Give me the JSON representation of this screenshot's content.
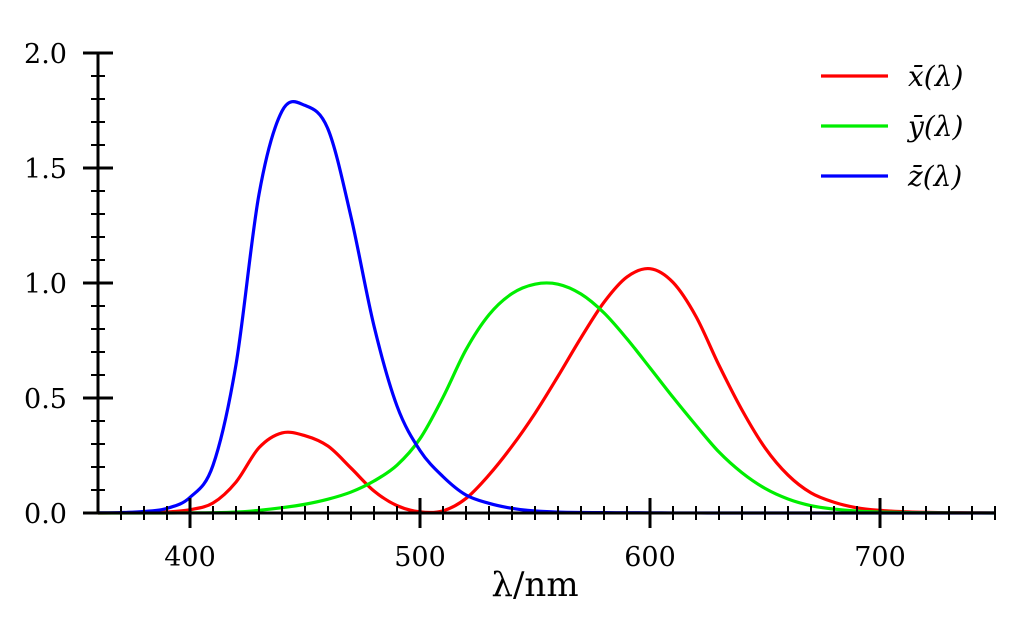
{
  "chart_data": {
    "type": "line",
    "title": "",
    "xlabel": "λ/nm",
    "ylabel": "",
    "xlim": [
      360,
      750
    ],
    "ylim": [
      0,
      2.0
    ],
    "x_ticks": [
      400,
      500,
      600,
      700
    ],
    "y_ticks": [
      0.0,
      0.5,
      1.0,
      1.5,
      2.0
    ],
    "x_tick_labels": [
      "400",
      "500",
      "600",
      "700"
    ],
    "y_tick_labels": [
      "0.0",
      "0.5",
      "1.0",
      "1.5",
      "2.0"
    ],
    "grid": false,
    "legend_position": "top-right",
    "x": [
      360,
      370,
      380,
      390,
      400,
      410,
      420,
      430,
      440,
      450,
      460,
      470,
      480,
      490,
      500,
      510,
      520,
      530,
      540,
      550,
      560,
      570,
      580,
      590,
      600,
      610,
      620,
      630,
      640,
      650,
      660,
      670,
      680,
      690,
      700,
      710,
      720,
      730,
      740,
      750
    ],
    "series": [
      {
        "name": "x̄(λ)",
        "color": "#ff0000",
        "values": [
          0.0001,
          0.0004,
          0.0014,
          0.0042,
          0.0143,
          0.0435,
          0.1344,
          0.2839,
          0.3483,
          0.3362,
          0.2908,
          0.1954,
          0.0956,
          0.032,
          0.0049,
          0.0093,
          0.0633,
          0.1655,
          0.2904,
          0.4334,
          0.5945,
          0.7621,
          0.9163,
          1.0263,
          1.0622,
          1.0026,
          0.8544,
          0.6424,
          0.4479,
          0.2835,
          0.1649,
          0.0874,
          0.0468,
          0.0227,
          0.0114,
          0.0058,
          0.0029,
          0.0014,
          0.0007,
          0.0003
        ]
      },
      {
        "name": "ȳ(λ)",
        "color": "#00ee00",
        "values": [
          0.0,
          0.0,
          0.0,
          0.0001,
          0.0004,
          0.0012,
          0.004,
          0.0116,
          0.023,
          0.038,
          0.06,
          0.091,
          0.139,
          0.208,
          0.323,
          0.503,
          0.71,
          0.862,
          0.954,
          0.995,
          0.995,
          0.952,
          0.87,
          0.757,
          0.631,
          0.503,
          0.381,
          0.265,
          0.175,
          0.107,
          0.061,
          0.032,
          0.017,
          0.0082,
          0.0041,
          0.0021,
          0.001,
          0.0005,
          0.0003,
          0.0001
        ]
      },
      {
        "name": "z̄(λ)",
        "color": "#0000ff",
        "values": [
          0.0006,
          0.0019,
          0.0065,
          0.0201,
          0.0679,
          0.2074,
          0.6456,
          1.3856,
          1.7471,
          1.7721,
          1.6692,
          1.2876,
          0.813,
          0.4652,
          0.272,
          0.1582,
          0.0782,
          0.0422,
          0.0203,
          0.0087,
          0.0039,
          0.0021,
          0.0017,
          0.0011,
          0.0008,
          0.0003,
          0.0002,
          0.0,
          0.0,
          0.0,
          0.0,
          0.0,
          0.0,
          0.0,
          0.0,
          0.0,
          0.0,
          0.0,
          0.0,
          0.0
        ]
      }
    ]
  }
}
